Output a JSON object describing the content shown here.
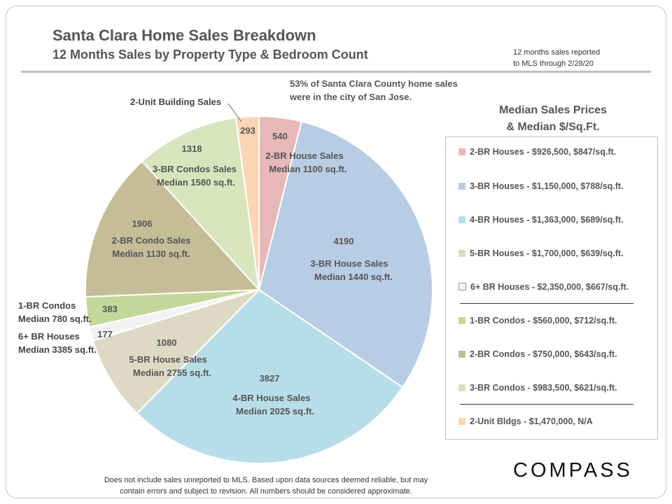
{
  "title": "Santa Clara Home Sales Breakdown",
  "subtitle": "12 Months Sales by Property Type & Bedroom Count",
  "report_note": [
    "12 months sales reported",
    "to MLS through 2/28/20"
  ],
  "annotation": [
    "53% of Santa Clara County home sales",
    "were in the city of San Jose."
  ],
  "legend_title": [
    "Median Sales Prices",
    "& Median $/Sq.Ft."
  ],
  "legend": [
    {
      "text": "2-BR Houses - $926,500, $847/sq.ft.",
      "color": "#e6b8b7"
    },
    {
      "text": "3-BR Houses - $1,150,000, $788/sq.ft.",
      "color": "#b8cce4"
    },
    {
      "text": "4-BR Houses - $1,363,000, $689/sq.ft.",
      "color": "#b7dee8"
    },
    {
      "text": "5-BR Houses - $1,700,000, $639/sq.ft.",
      "color": "#ddd9c4"
    },
    {
      "text": "6+ BR Houses - $2,350,000, $667/sq.ft.",
      "color": "#f2f2f2"
    },
    {
      "text": "1-BR Condos - $560,000, $712/sq.ft.",
      "color": "#c4d79b"
    },
    {
      "text": "2-BR Condos - $750,000, $643/sq.ft.",
      "color": "#c4bd97"
    },
    {
      "text": "3-BR Condos - $983,500, $621/sq.ft.",
      "color": "#d8e4bc"
    },
    {
      "text": "2-Unit Bldgs - $1,470,000, N/A",
      "color": "#fcd5b4"
    }
  ],
  "footnote": [
    "Does not include sales unreported to MLS.  Based upon data sources deemed reliable, but may",
    "contain errors and subject to revision.  All numbers should be considered approximate."
  ],
  "logo_text": "COMPASS",
  "chart_data": {
    "type": "pie",
    "title": "Santa Clara Home Sales Breakdown",
    "subtitle": "12 Months Sales by Property Type & Bedroom Count",
    "slices": [
      {
        "key": "2br-house",
        "value": 540,
        "value_label": "540",
        "label": [
          "2-BR House Sales",
          "Median 1100 sq.ft."
        ],
        "color": "#e6b8b7"
      },
      {
        "key": "3br-house",
        "value": 4190,
        "value_label": "4190",
        "label": [
          "3-BR House Sales",
          "Median 1440 sq.ft."
        ],
        "color": "#b8cce4"
      },
      {
        "key": "4br-house",
        "value": 3827,
        "value_label": "3827",
        "label": [
          "4-BR House Sales",
          "Median 2025 sq.ft."
        ],
        "color": "#b7dee8"
      },
      {
        "key": "5br-house",
        "value": 1080,
        "value_label": "1080",
        "label": [
          "5-BR House Sales",
          "Median 2755 sq.ft."
        ],
        "color": "#ddd9c4"
      },
      {
        "key": "6br-house",
        "value": 177,
        "value_label": "177",
        "label": [
          "6+ BR Houses",
          "Median 3385 sq.ft."
        ],
        "color": "#f2f2f2"
      },
      {
        "key": "1br-condo",
        "value": 383,
        "value_label": "383",
        "label": [
          "1-BR Condos",
          "Median 780 sq.ft."
        ],
        "color": "#c4d79b"
      },
      {
        "key": "2br-condo",
        "value": 1906,
        "value_label": "1906",
        "label": [
          "2-BR Condo Sales",
          "Median 1130 sq.ft."
        ],
        "color": "#c4bd97"
      },
      {
        "key": "3br-condo",
        "value": 1318,
        "value_label": "1318",
        "label": [
          "3-BR Condos Sales",
          "Median 1580 sq.ft."
        ],
        "color": "#d8e4bc"
      },
      {
        "key": "2unit-bldg",
        "value": 293,
        "value_label": "293",
        "label": [
          "2-Unit Building Sales"
        ],
        "color": "#fcd5b4"
      }
    ]
  }
}
